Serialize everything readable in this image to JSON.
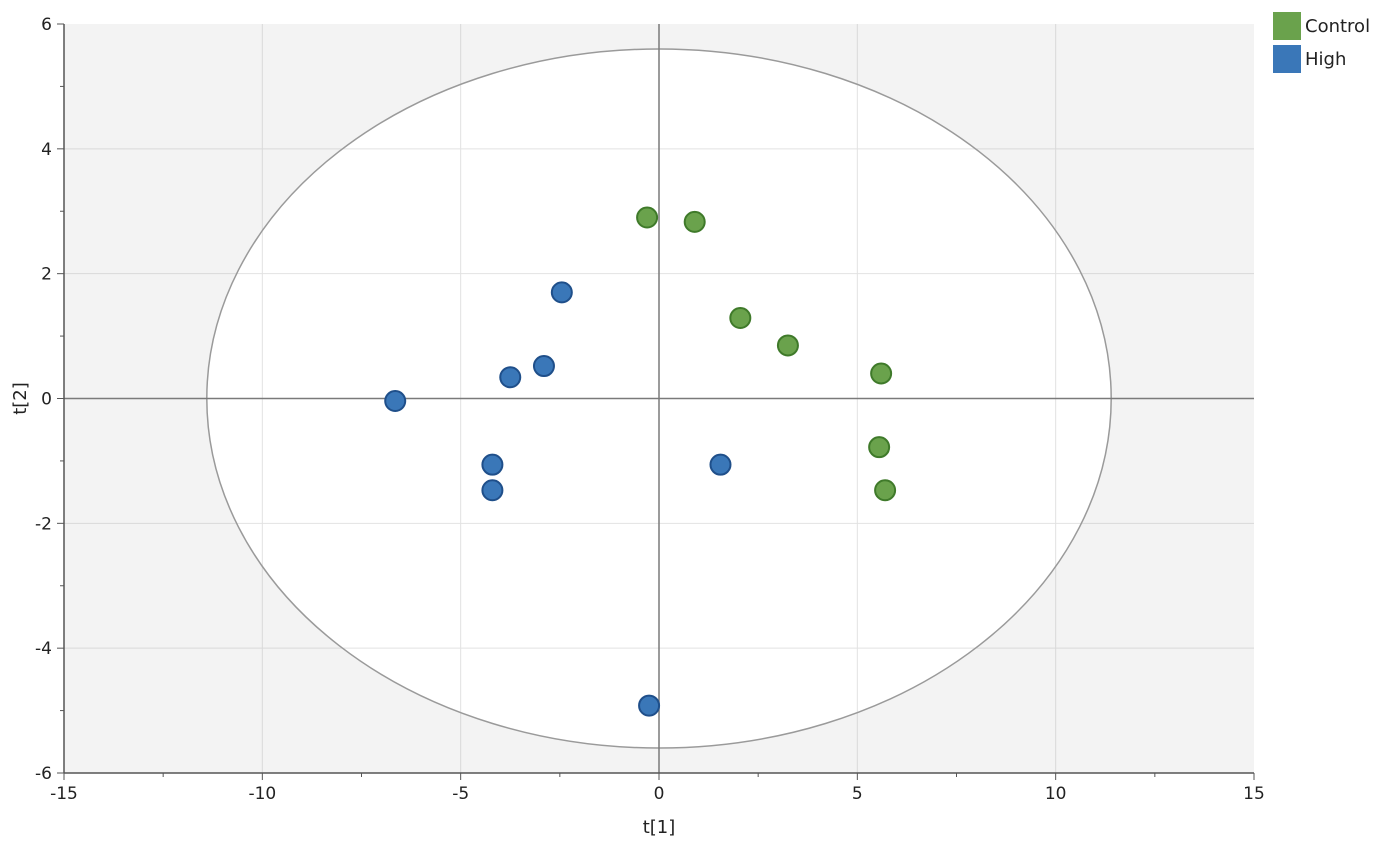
{
  "chart_data": {
    "type": "scatter",
    "xlabel": "t[1]",
    "ylabel": "t[2]",
    "xlim": [
      -15,
      15
    ],
    "ylim": [
      -6,
      6
    ],
    "x_ticks": [
      -15,
      -10,
      -5,
      0,
      5,
      10,
      15
    ],
    "y_ticks": [
      -6,
      -4,
      -2,
      0,
      2,
      4,
      6
    ],
    "x_tick_labels": [
      "-15",
      "-10",
      "-5",
      "0",
      "5",
      "10",
      "15"
    ],
    "y_tick_labels": [
      "-6",
      "-4",
      "-2",
      "0",
      "2",
      "4",
      "6"
    ],
    "grid": true,
    "legend_position": "top-right",
    "ellipse": {
      "rx": 11.4,
      "ry": 5.6
    },
    "series": [
      {
        "name": "Control",
        "color": "#6aa24c",
        "points": [
          [
            -0.3,
            2.9
          ],
          [
            0.9,
            2.83
          ],
          [
            2.05,
            1.29
          ],
          [
            3.25,
            0.85
          ],
          [
            5.6,
            0.4
          ],
          [
            5.55,
            -0.78
          ],
          [
            5.7,
            -1.47
          ]
        ]
      },
      {
        "name": "High",
        "color": "#3a77b8",
        "points": [
          [
            -2.45,
            1.7
          ],
          [
            -2.9,
            0.52
          ],
          [
            -3.75,
            0.34
          ],
          [
            -6.65,
            -0.04
          ],
          [
            -4.2,
            -1.06
          ],
          [
            -4.2,
            -1.47
          ],
          [
            1.55,
            -1.06
          ],
          [
            -0.25,
            -4.92
          ]
        ]
      }
    ]
  }
}
